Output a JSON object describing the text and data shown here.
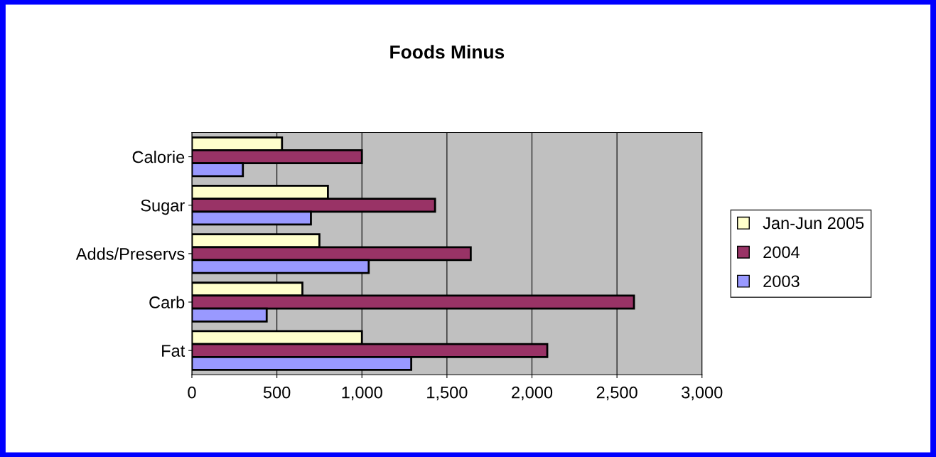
{
  "chart_data": {
    "type": "bar",
    "orientation": "horizontal",
    "title": "Foods Minus",
    "categories": [
      "Calorie",
      "Sugar",
      "Adds/Preservs",
      "Carb",
      "Fat"
    ],
    "series": [
      {
        "name": "Jan-Jun 2005",
        "color": "#ffffcc",
        "values": [
          530,
          800,
          750,
          650,
          1000
        ]
      },
      {
        "name": "2004",
        "color": "#993366",
        "values": [
          1000,
          1430,
          1640,
          2600,
          2090
        ]
      },
      {
        "name": "2003",
        "color": "#9999ff",
        "values": [
          300,
          700,
          1040,
          440,
          1290
        ]
      }
    ],
    "xlim": [
      0,
      3000
    ],
    "xticks": [
      0,
      500,
      {
        "value": 1000,
        "label": "1,000"
      },
      {
        "value": 1500,
        "label": "1,500"
      },
      {
        "value": 2000,
        "label": "2,000"
      },
      {
        "value": 2500,
        "label": "2,500"
      },
      {
        "value": 3000,
        "label": "3,000"
      }
    ],
    "grid": "x",
    "legend": "right"
  }
}
